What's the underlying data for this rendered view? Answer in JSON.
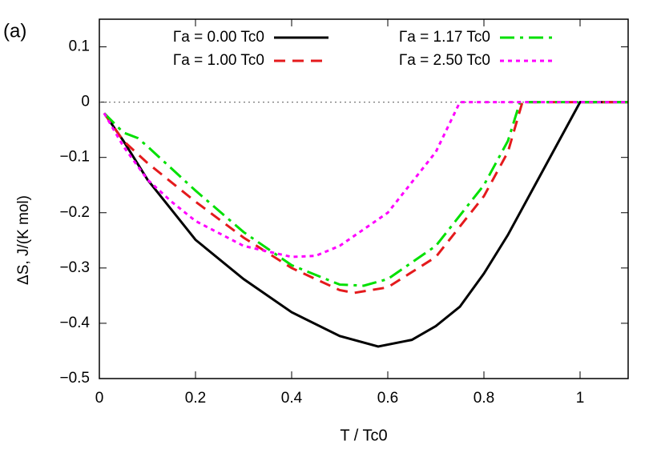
{
  "chart_data": {
    "type": "line",
    "panel_label": "(a)",
    "xlabel": "T / Tc0",
    "ylabel": "ΔS, J/(K mol)",
    "xlim": [
      0,
      1.1
    ],
    "ylim": [
      -0.5,
      0.15
    ],
    "xticks": [
      0,
      0.2,
      0.4,
      0.6,
      0.8,
      1
    ],
    "yticks": [
      {
        "value": -0.5,
        "label": "−0.5"
      },
      {
        "value": -0.4,
        "label": "−0.4"
      },
      {
        "value": -0.3,
        "label": "−0.3"
      },
      {
        "value": -0.2,
        "label": "−0.2"
      },
      {
        "value": -0.1,
        "label": "−0.1"
      },
      0,
      0.1
    ],
    "zero_line": true,
    "legend": "top",
    "series": [
      {
        "name": "Γa = 0.00 Tc0",
        "color": "#000000",
        "dash": "solid",
        "x": [
          0.01,
          0.05,
          0.1,
          0.2,
          0.3,
          0.4,
          0.5,
          0.58,
          0.65,
          0.7,
          0.75,
          0.8,
          0.85,
          0.9,
          0.95,
          1.0,
          1.1
        ],
        "values": [
          -0.02,
          -0.07,
          -0.14,
          -0.249,
          -0.32,
          -0.38,
          -0.423,
          -0.442,
          -0.43,
          -0.405,
          -0.37,
          -0.31,
          -0.24,
          -0.16,
          -0.08,
          0,
          0
        ]
      },
      {
        "name": "Γa = 1.00 Tc0",
        "color": "#e41a1c",
        "dash": "dashed",
        "x": [
          0.01,
          0.05,
          0.1,
          0.2,
          0.3,
          0.4,
          0.5,
          0.53,
          0.6,
          0.7,
          0.8,
          0.85,
          0.88,
          1.1
        ],
        "values": [
          -0.02,
          -0.07,
          -0.11,
          -0.18,
          -0.245,
          -0.3,
          -0.34,
          -0.345,
          -0.335,
          -0.28,
          -0.17,
          -0.09,
          0,
          0
        ]
      },
      {
        "name": "Γa = 1.17 Tc0",
        "color": "#00e000",
        "dash": "dashdot",
        "x": [
          0.01,
          0.05,
          0.08,
          0.1,
          0.2,
          0.3,
          0.4,
          0.5,
          0.55,
          0.6,
          0.7,
          0.8,
          0.85,
          0.875,
          1.1
        ],
        "values": [
          -0.02,
          -0.055,
          -0.065,
          -0.08,
          -0.16,
          -0.235,
          -0.295,
          -0.33,
          -0.332,
          -0.32,
          -0.26,
          -0.15,
          -0.07,
          0,
          0
        ]
      },
      {
        "name": "Γa = 2.50 Tc0",
        "color": "#ff00ff",
        "dash": "dotted",
        "x": [
          0.01,
          0.05,
          0.1,
          0.15,
          0.2,
          0.3,
          0.4,
          0.45,
          0.5,
          0.6,
          0.7,
          0.75,
          1.1
        ],
        "values": [
          -0.02,
          -0.08,
          -0.14,
          -0.18,
          -0.215,
          -0.26,
          -0.28,
          -0.278,
          -0.26,
          -0.2,
          -0.09,
          0,
          0
        ]
      }
    ]
  }
}
